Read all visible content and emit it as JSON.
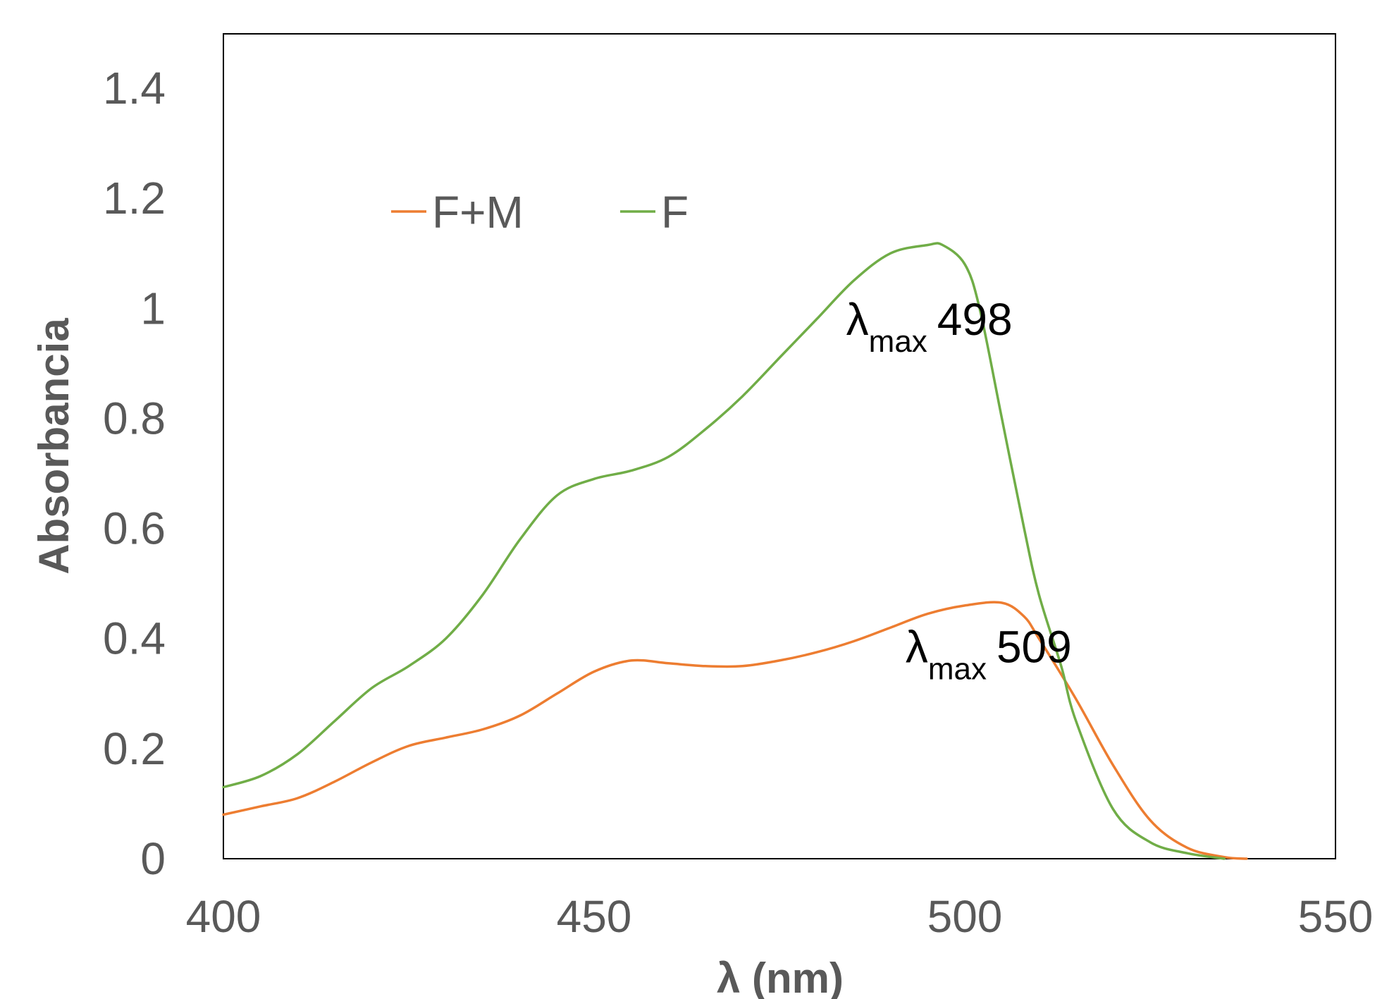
{
  "chart_data": {
    "type": "line",
    "title": "",
    "xlabel": "λ (nm)",
    "ylabel": "Absorbancia",
    "xlim": [
      400,
      550
    ],
    "ylim": [
      0,
      1.4
    ],
    "x_ticks": [
      "400",
      "450",
      "500",
      "550"
    ],
    "y_ticks": [
      "0",
      "0.2",
      "0.4",
      "0.6",
      "0.8",
      "1",
      "1.2",
      "1.4"
    ],
    "grid": false,
    "legend_position": "top-left",
    "series": [
      {
        "name": "F+M",
        "color": "#ED7D31",
        "x": [
          400,
          405,
          410,
          415,
          420,
          425,
          430,
          435,
          440,
          445,
          450,
          455,
          460,
          465,
          470,
          475,
          480,
          485,
          490,
          495,
          500,
          505,
          508,
          510,
          515,
          520,
          525,
          530,
          535,
          538
        ],
        "y": [
          0.08,
          0.095,
          0.11,
          0.14,
          0.175,
          0.205,
          0.22,
          0.235,
          0.26,
          0.3,
          0.34,
          0.36,
          0.355,
          0.35,
          0.35,
          0.36,
          0.375,
          0.395,
          0.42,
          0.445,
          0.46,
          0.465,
          0.44,
          0.4,
          0.29,
          0.17,
          0.07,
          0.02,
          0.003,
          0.0
        ]
      },
      {
        "name": "F",
        "color": "#70AD47",
        "x": [
          400,
          405,
          410,
          415,
          420,
          425,
          430,
          435,
          440,
          445,
          450,
          455,
          460,
          465,
          470,
          475,
          480,
          485,
          490,
          495,
          497,
          500,
          502,
          505,
          508,
          510,
          513,
          515,
          520,
          525,
          530,
          535
        ],
        "y": [
          0.13,
          0.15,
          0.19,
          0.25,
          0.31,
          0.35,
          0.4,
          0.48,
          0.58,
          0.66,
          0.69,
          0.705,
          0.73,
          0.78,
          0.84,
          0.91,
          0.98,
          1.05,
          1.1,
          1.115,
          1.115,
          1.08,
          1.0,
          0.8,
          0.6,
          0.48,
          0.35,
          0.25,
          0.09,
          0.03,
          0.01,
          0.0
        ]
      }
    ],
    "annotations": [
      {
        "symbol": "λ",
        "sub": "max",
        "value": "498",
        "x": 484,
        "y": 0.98
      },
      {
        "symbol": "λ",
        "sub": "max",
        "value": "509",
        "x": 492,
        "y": 0.385
      }
    ]
  }
}
